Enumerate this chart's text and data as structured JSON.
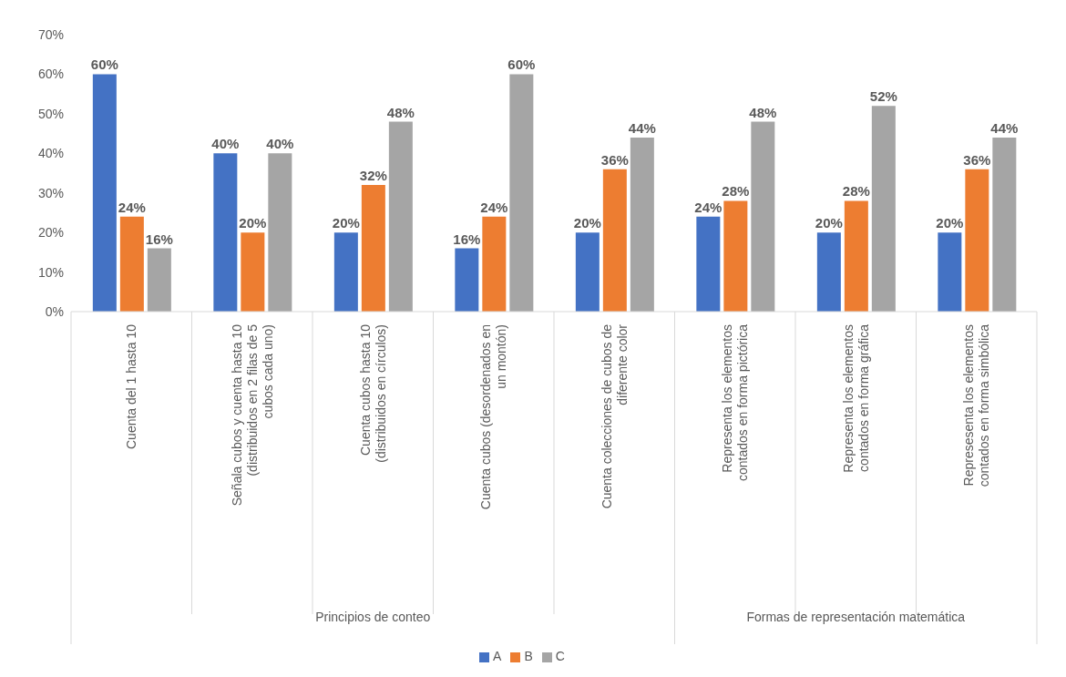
{
  "chart_data": {
    "type": "bar",
    "categories": [
      "Cuenta del 1 hasta 10",
      "Señala cubos y cuenta hasta 10 (distribuidos en 2 filas de 5 cubos cada uno)",
      "Cuenta cubos hasta 10 (distribuidos en círculos)",
      "Cuenta cubos (desordenados en un montón)",
      "Cuenta colecciones de cubos de diferente color",
      "Representa los elementos contados en forma pictórica",
      "Representa los elementos contados en forma gráfica",
      "Represesenta los elementos contados en forma simbólica"
    ],
    "series": [
      {
        "name": "A",
        "color": "#4472c4",
        "values": [
          60,
          40,
          20,
          16,
          20,
          24,
          20,
          20
        ],
        "value_labels": [
          "60%",
          "40%",
          "20%",
          "16%",
          "20%",
          "24%",
          "20%",
          "20%"
        ]
      },
      {
        "name": "B",
        "color": "#ed7d31",
        "values": [
          24,
          20,
          32,
          24,
          36,
          28,
          28,
          36
        ],
        "value_labels": [
          "24%",
          "20%",
          "32%",
          "24%",
          "36%",
          "28%",
          "28%",
          "36%"
        ]
      },
      {
        "name": "C",
        "color": "#a5a5a5",
        "values": [
          16,
          40,
          48,
          60,
          44,
          48,
          52,
          44
        ],
        "value_labels": [
          "16%",
          "40%",
          "48%",
          "60%",
          "44%",
          "48%",
          "52%",
          "44%"
        ]
      }
    ],
    "ylim": [
      0,
      70
    ],
    "yticks": [
      {
        "value": 0,
        "label": "0%"
      },
      {
        "value": 10,
        "label": "10%"
      },
      {
        "value": 20,
        "label": "20%"
      },
      {
        "value": 30,
        "label": "30%"
      },
      {
        "value": 40,
        "label": "40%"
      },
      {
        "value": 50,
        "label": "50%"
      },
      {
        "value": 60,
        "label": "60%"
      },
      {
        "value": 70,
        "label": "70%"
      }
    ],
    "annotations": [
      "Principios de conteo",
      "Formas de representación matemática"
    ],
    "grid": false,
    "legend": "bottom"
  }
}
